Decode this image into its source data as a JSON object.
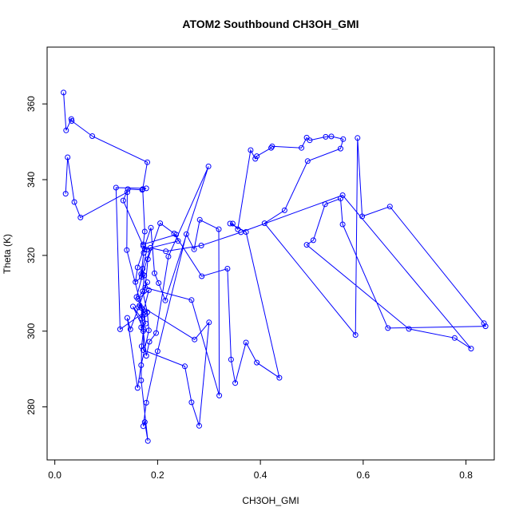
{
  "chart_data": {
    "type": "line",
    "title": "ATOM2 Southbound CH3OH_GMI",
    "xlabel": "CH3OH_GMI",
    "ylabel": "Theta (K)",
    "xlim": [
      -0.015,
      0.855
    ],
    "ylim": [
      266,
      375
    ],
    "xticks": [
      0.0,
      0.2,
      0.4,
      0.6,
      0.8
    ],
    "xtick_labels": [
      "0.0",
      "0.2",
      "0.4",
      "0.6",
      "0.8"
    ],
    "yticks": [
      280,
      300,
      320,
      340,
      360
    ],
    "ytick_labels": [
      "280",
      "300",
      "320",
      "340",
      "360"
    ],
    "series_color": "#0000ff",
    "marker": "open-circle",
    "grid": false,
    "x": [
      0.017,
      0.022,
      0.032,
      0.033,
      0.073,
      0.18,
      0.171,
      0.175,
      0.172,
      0.236,
      0.24,
      0.175,
      0.173,
      0.168,
      0.174,
      0.171,
      0.18,
      0.183,
      0.168,
      0.161,
      0.141,
      0.147,
      0.163,
      0.18,
      0.162,
      0.183,
      0.169,
      0.152,
      0.173,
      0.172,
      0.253,
      0.266,
      0.281,
      0.3,
      0.272,
      0.165,
      0.176,
      0.169,
      0.168,
      0.181,
      0.175,
      0.172,
      0.178,
      0.2,
      0.256,
      0.271,
      0.282,
      0.319,
      0.32,
      0.266,
      0.176,
      0.181,
      0.205,
      0.232,
      0.286,
      0.336,
      0.343,
      0.351,
      0.372,
      0.393,
      0.437,
      0.372,
      0.341,
      0.346,
      0.356,
      0.381,
      0.39,
      0.393,
      0.421,
      0.423,
      0.48,
      0.49,
      0.496,
      0.527,
      0.538,
      0.561,
      0.556,
      0.492,
      0.447,
      0.408,
      0.585,
      0.589,
      0.598,
      0.652,
      0.835,
      0.838,
      0.648,
      0.56,
      0.556,
      0.526,
      0.503,
      0.49,
      0.689,
      0.778,
      0.81,
      0.56,
      0.362,
      0.285,
      0.216,
      0.186,
      0.171,
      0.159,
      0.174,
      0.127,
      0.119,
      0.178,
      0.17,
      0.142,
      0.133,
      0.172,
      0.179,
      0.171,
      0.169,
      0.157,
      0.161,
      0.187,
      0.194,
      0.202,
      0.215,
      0.299,
      0.221,
      0.197,
      0.184,
      0.178,
      0.172,
      0.169,
      0.168,
      0.177,
      0.14,
      0.141,
      0.05,
      0.038,
      0.025,
      0.021
    ],
    "y": [
      363,
      353,
      356,
      355.5,
      351.5,
      344.6,
      337.5,
      326.3,
      322.9,
      325.5,
      323.8,
      321.6,
      320.7,
      315.1,
      314.7,
      310.5,
      305,
      300.2,
      291,
      285,
      303.5,
      300.5,
      306.3,
      312.9,
      308.5,
      310.8,
      303.3,
      306.5,
      300.5,
      295,
      290.7,
      281.2,
      275,
      302.3,
      297.8,
      306.8,
      304.5,
      296,
      287,
      271,
      276,
      274.9,
      281.1,
      294.7,
      325.6,
      321.6,
      329.4,
      326.9,
      283,
      308.2,
      311.5,
      319,
      328.5,
      325.8,
      314.5,
      316.5,
      292.5,
      286.3,
      297,
      291.7,
      287.7,
      326.2,
      328.4,
      328.4,
      326.9,
      347.8,
      345.5,
      346.2,
      348.4,
      348.8,
      348.4,
      351.1,
      350.4,
      351.3,
      351.4,
      350.7,
      348.2,
      344.9,
      331.9,
      328.5,
      299,
      351,
      330.3,
      332.9,
      302.1,
      301.3,
      300.8,
      328.2,
      335,
      333.5,
      324,
      322.8,
      300.6,
      298.2,
      295.4,
      335.9,
      326.1,
      322.6,
      321.1,
      322,
      315,
      309,
      305,
      300.5,
      337.9,
      337.7,
      337.3,
      337.5,
      334.5,
      322.5,
      321.5,
      316.5,
      314.3,
      313,
      316.8,
      327.3,
      315.3,
      312.7,
      308.1,
      343.5,
      319.7,
      299.5,
      297.2,
      293.5,
      300,
      306.1,
      301,
      302,
      321.4,
      336.7,
      330,
      334.1,
      345.9,
      336.3
    ]
  }
}
